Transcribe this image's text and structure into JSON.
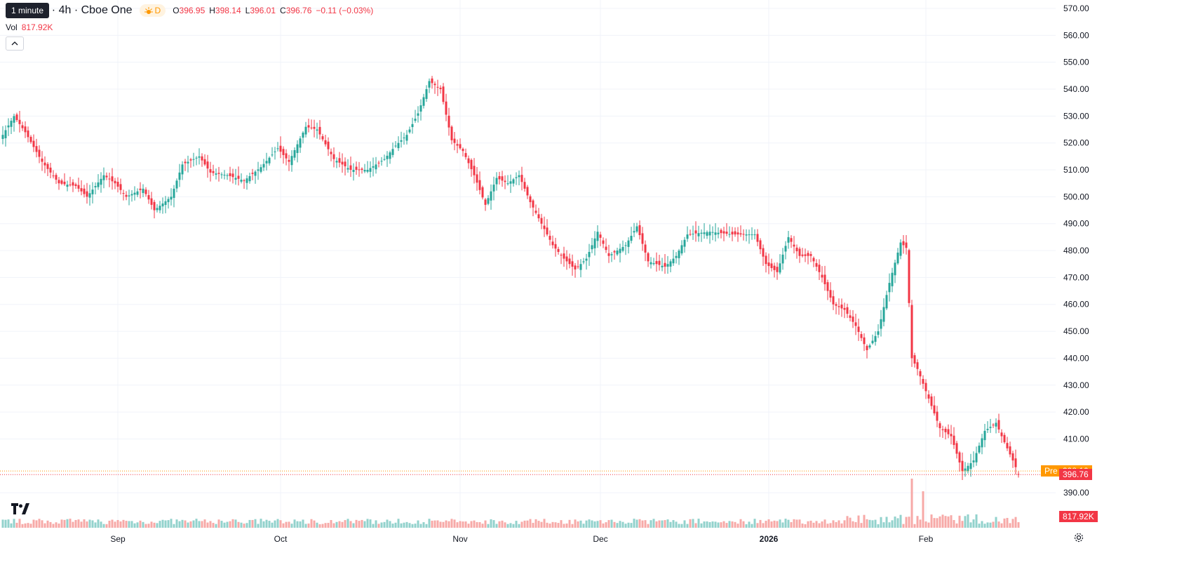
{
  "legend": {
    "tooltip": "1 minute",
    "title": "oft Corp. · 4h · Cboe One",
    "session_badge": "D",
    "open_label": "O",
    "open": "396.95",
    "high_label": "H",
    "high": "398.14",
    "low_label": "L",
    "low": "396.01",
    "close_label": "C",
    "close": "396.76",
    "change": "−0.11 (−0.03%)",
    "volume_label": "Vol",
    "volume": "817.92K"
  },
  "tags": {
    "pre_label": "Pre",
    "pre_price": "398.10",
    "last_price": "396.76",
    "volume_tag": "817.92K"
  },
  "colors": {
    "up": "#26a69a",
    "down": "#f23645",
    "up_volume": "#92d2cc",
    "down_volume": "#f7a9a7",
    "pre_tag": "#ff9800",
    "grid": "#f0f3fa"
  },
  "icons": {
    "logo": "tradingview-logo-icon",
    "collapse": "chevron-up-icon",
    "settings": "gear-icon"
  },
  "chart_data": {
    "type": "candlestick",
    "ylabel": "",
    "xlabel": "",
    "ylim": [
      383,
      573
    ],
    "y_ticks": [
      570,
      560,
      550,
      540,
      530,
      520,
      510,
      500,
      490,
      480,
      470,
      460,
      450,
      440,
      430,
      420,
      410,
      390
    ],
    "x_ticks": [
      {
        "label": "Sep",
        "index": 41
      },
      {
        "label": "Oct",
        "index": 99
      },
      {
        "label": "Nov",
        "index": 163
      },
      {
        "label": "Dec",
        "index": 213
      },
      {
        "label": "2026",
        "index": 273
      },
      {
        "label": "Feb",
        "index": 329
      }
    ],
    "price_lines": {
      "pre": 398.1,
      "last": 396.76
    },
    "keypoints": [
      [
        0,
        523
      ],
      [
        4,
        530
      ],
      [
        8,
        524
      ],
      [
        14,
        513
      ],
      [
        20,
        505
      ],
      [
        26,
        504
      ],
      [
        30,
        500
      ],
      [
        36,
        508
      ],
      [
        40,
        505
      ],
      [
        44,
        500
      ],
      [
        50,
        503
      ],
      [
        54,
        495
      ],
      [
        60,
        500
      ],
      [
        64,
        512
      ],
      [
        70,
        515
      ],
      [
        74,
        509
      ],
      [
        80,
        508
      ],
      [
        86,
        506
      ],
      [
        92,
        511
      ],
      [
        98,
        518
      ],
      [
        102,
        513
      ],
      [
        108,
        526
      ],
      [
        112,
        525
      ],
      [
        118,
        514
      ],
      [
        124,
        510
      ],
      [
        130,
        510
      ],
      [
        136,
        514
      ],
      [
        140,
        519
      ],
      [
        144,
        523
      ],
      [
        148,
        531
      ],
      [
        152,
        543
      ],
      [
        156,
        540
      ],
      [
        160,
        521
      ],
      [
        164,
        517
      ],
      [
        168,
        508
      ],
      [
        172,
        497
      ],
      [
        176,
        507
      ],
      [
        180,
        505
      ],
      [
        184,
        508
      ],
      [
        188,
        498
      ],
      [
        192,
        490
      ],
      [
        196,
        482
      ],
      [
        200,
        477
      ],
      [
        204,
        473
      ],
      [
        208,
        477
      ],
      [
        212,
        487
      ],
      [
        216,
        478
      ],
      [
        222,
        482
      ],
      [
        226,
        489
      ],
      [
        230,
        476
      ],
      [
        236,
        474
      ],
      [
        240,
        478
      ],
      [
        244,
        486
      ],
      [
        252,
        487
      ],
      [
        260,
        486
      ],
      [
        268,
        486
      ],
      [
        272,
        475
      ],
      [
        276,
        472
      ],
      [
        280,
        485
      ],
      [
        284,
        478
      ],
      [
        288,
        478
      ],
      [
        292,
        470
      ],
      [
        296,
        460
      ],
      [
        300,
        458
      ],
      [
        304,
        452
      ],
      [
        308,
        443
      ],
      [
        312,
        450
      ],
      [
        316,
        468
      ],
      [
        320,
        483
      ],
      [
        322,
        481
      ],
      [
        324,
        440
      ],
      [
        326,
        436
      ],
      [
        330,
        425
      ],
      [
        334,
        414
      ],
      [
        338,
        411
      ],
      [
        342,
        398
      ],
      [
        346,
        402
      ],
      [
        350,
        413
      ],
      [
        354,
        416
      ],
      [
        356,
        411
      ],
      [
        360,
        402
      ],
      [
        362,
        397
      ]
    ],
    "volume_profile_k": {
      "typical": [
        250,
        650
      ],
      "spikes": [
        {
          "index": 324,
          "value": 3500
        },
        {
          "index": 328,
          "value": 2600
        }
      ]
    },
    "last_volume": "817.92K"
  }
}
